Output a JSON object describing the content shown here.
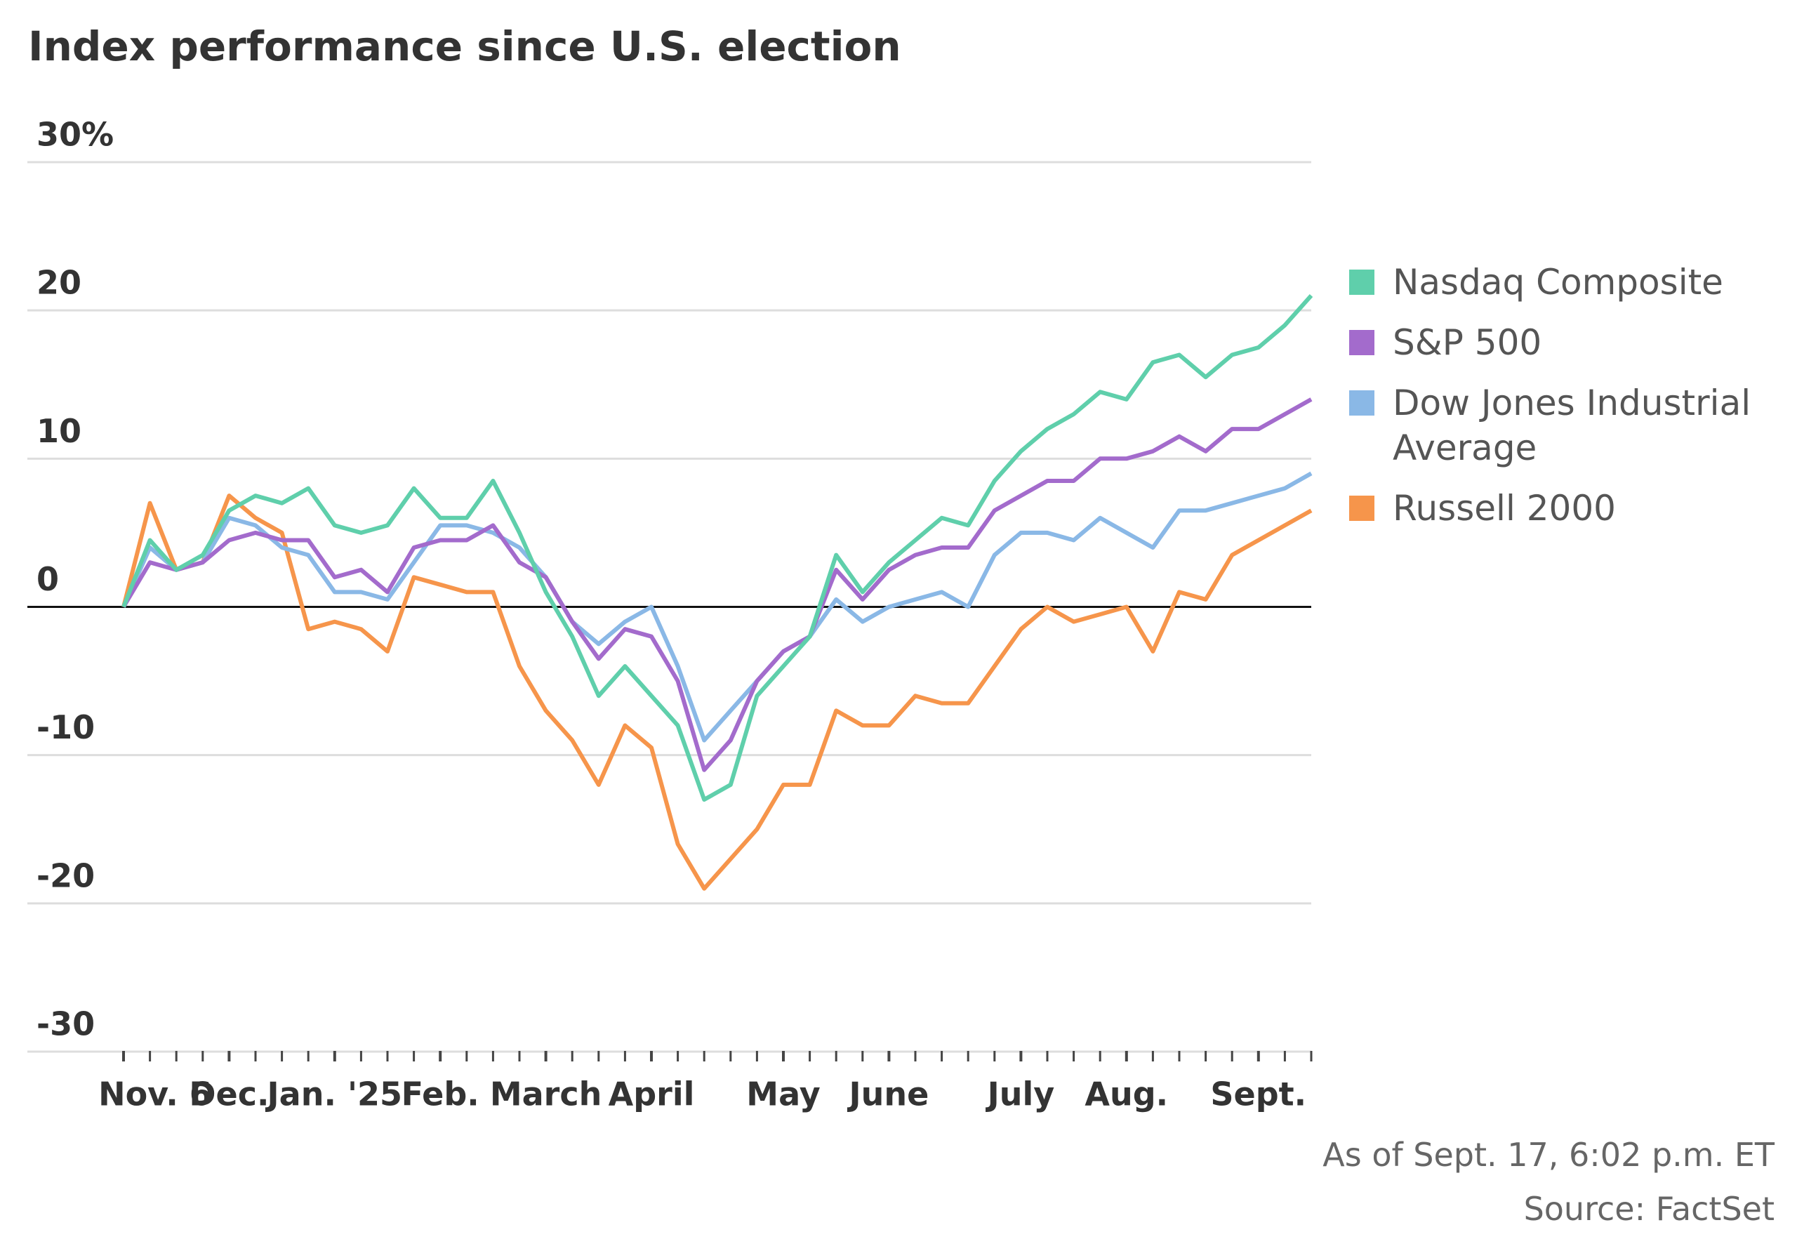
{
  "chart_data": {
    "type": "line",
    "title": "Index performance since U.S. election",
    "note": "As of Sept. 17, 6:02 p.m. ET",
    "source": "Source: FactSet",
    "categories": [
      "Nov. 6",
      null,
      null,
      null,
      "Dec.",
      null,
      null,
      null,
      "Jan. '25",
      null,
      null,
      null,
      "Feb.",
      null,
      null,
      null,
      "March",
      null,
      null,
      null,
      "April",
      null,
      null,
      null,
      null,
      "May",
      null,
      null,
      null,
      "June",
      null,
      null,
      null,
      null,
      "July",
      null,
      null,
      null,
      "Aug.",
      null,
      null,
      null,
      null,
      "Sept.",
      null,
      null
    ],
    "ylim": [
      -30,
      30
    ],
    "yticks": [
      -30,
      -20,
      -10,
      0,
      10,
      {
        "value": 30,
        "label": "30%"
      },
      20
    ],
    "grid": true,
    "series": [
      {
        "name": "Nasdaq Composite",
        "color": "#5fcfab",
        "values": [
          0,
          4.5,
          2.5,
          3.5,
          6.5,
          7.5,
          7,
          8,
          5.5,
          5,
          5.5,
          8,
          6,
          6,
          8.5,
          5,
          1,
          -2,
          -6,
          -4,
          -6,
          -8,
          -13,
          -12,
          -6,
          -4,
          -2,
          3.5,
          1,
          3,
          4.5,
          6,
          5.5,
          8.5,
          10.5,
          12,
          13,
          14.5,
          14,
          16.5,
          17,
          15.5,
          17,
          17.5,
          19,
          21
        ]
      },
      {
        "name": "S&P 500",
        "color": "#a36bcc",
        "values": [
          0,
          3,
          2.5,
          3,
          4.5,
          5,
          4.5,
          4.5,
          2,
          2.5,
          1,
          4,
          4.5,
          4.5,
          5.5,
          3,
          2,
          -1,
          -3.5,
          -1.5,
          -2,
          -5,
          -11,
          -9,
          -5,
          -3,
          -2,
          2.5,
          0.5,
          2.5,
          3.5,
          4,
          4,
          6.5,
          7.5,
          8.5,
          8.5,
          10,
          10,
          10.5,
          11.5,
          10.5,
          12,
          12,
          13,
          14
        ]
      },
      {
        "name": "Dow Jones Industrial Average",
        "color": "#8ab8e6",
        "values": [
          0,
          4,
          2.5,
          3,
          6,
          5.5,
          4,
          3.5,
          1,
          1,
          0.5,
          3,
          5.5,
          5.5,
          5,
          4,
          2,
          -1,
          -2.5,
          -1,
          0,
          -4,
          -9,
          -7,
          -5,
          -3,
          -2,
          0.5,
          -1,
          0,
          0.5,
          1,
          0,
          3.5,
          5,
          5,
          4.5,
          6,
          5,
          4,
          6.5,
          6.5,
          7,
          7.5,
          8,
          9
        ]
      },
      {
        "name": "Russell 2000",
        "color": "#f6954b",
        "values": [
          0,
          7,
          2.5,
          3,
          7.5,
          6,
          5,
          -1.5,
          -1,
          -1.5,
          -3,
          2,
          1.5,
          1,
          1,
          -4,
          -7,
          -9,
          -12,
          -8,
          -9.5,
          -16,
          -19,
          -17,
          -15,
          -12,
          -12,
          -7,
          -8,
          -8,
          -6,
          -6.5,
          -6.5,
          -4,
          -1.5,
          0,
          -1,
          -0.5,
          0,
          -3,
          1,
          0.5,
          3.5,
          4.5,
          5.5,
          6.5
        ]
      }
    ]
  }
}
